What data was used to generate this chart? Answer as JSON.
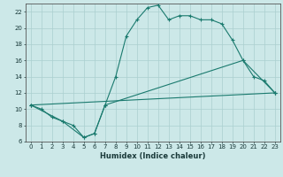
{
  "xlabel": "Humidex (Indice chaleur)",
  "bg_color": "#cce8e8",
  "grid_color": "#aacfcf",
  "line_color": "#1a7a6e",
  "xlim": [
    -0.5,
    23.5
  ],
  "ylim": [
    6,
    23
  ],
  "yticks": [
    6,
    8,
    10,
    12,
    14,
    16,
    18,
    20,
    22
  ],
  "xticks": [
    0,
    1,
    2,
    3,
    4,
    5,
    6,
    7,
    8,
    9,
    10,
    11,
    12,
    13,
    14,
    15,
    16,
    17,
    18,
    19,
    20,
    21,
    22,
    23
  ],
  "line1_x": [
    0,
    1,
    2,
    3,
    4,
    5,
    6,
    7,
    8,
    9,
    10,
    11,
    12,
    13,
    14,
    15,
    16,
    17,
    18,
    19,
    20,
    21,
    22,
    23
  ],
  "line1_y": [
    10.5,
    10.0,
    9.0,
    8.5,
    8.0,
    6.5,
    7.0,
    10.5,
    14.0,
    19.0,
    21.0,
    22.5,
    22.8,
    21.0,
    21.5,
    21.5,
    21.0,
    21.0,
    20.5,
    18.5,
    16.0,
    14.0,
    13.5,
    12.0
  ],
  "line2_x": [
    0,
    3,
    5,
    6,
    7,
    20,
    23
  ],
  "line2_y": [
    10.5,
    8.5,
    6.5,
    7.0,
    10.5,
    16.0,
    12.0
  ],
  "line3_x": [
    0,
    23
  ],
  "line3_y": [
    10.5,
    12.0
  ],
  "tick_fontsize": 5.0,
  "xlabel_fontsize": 6.0
}
